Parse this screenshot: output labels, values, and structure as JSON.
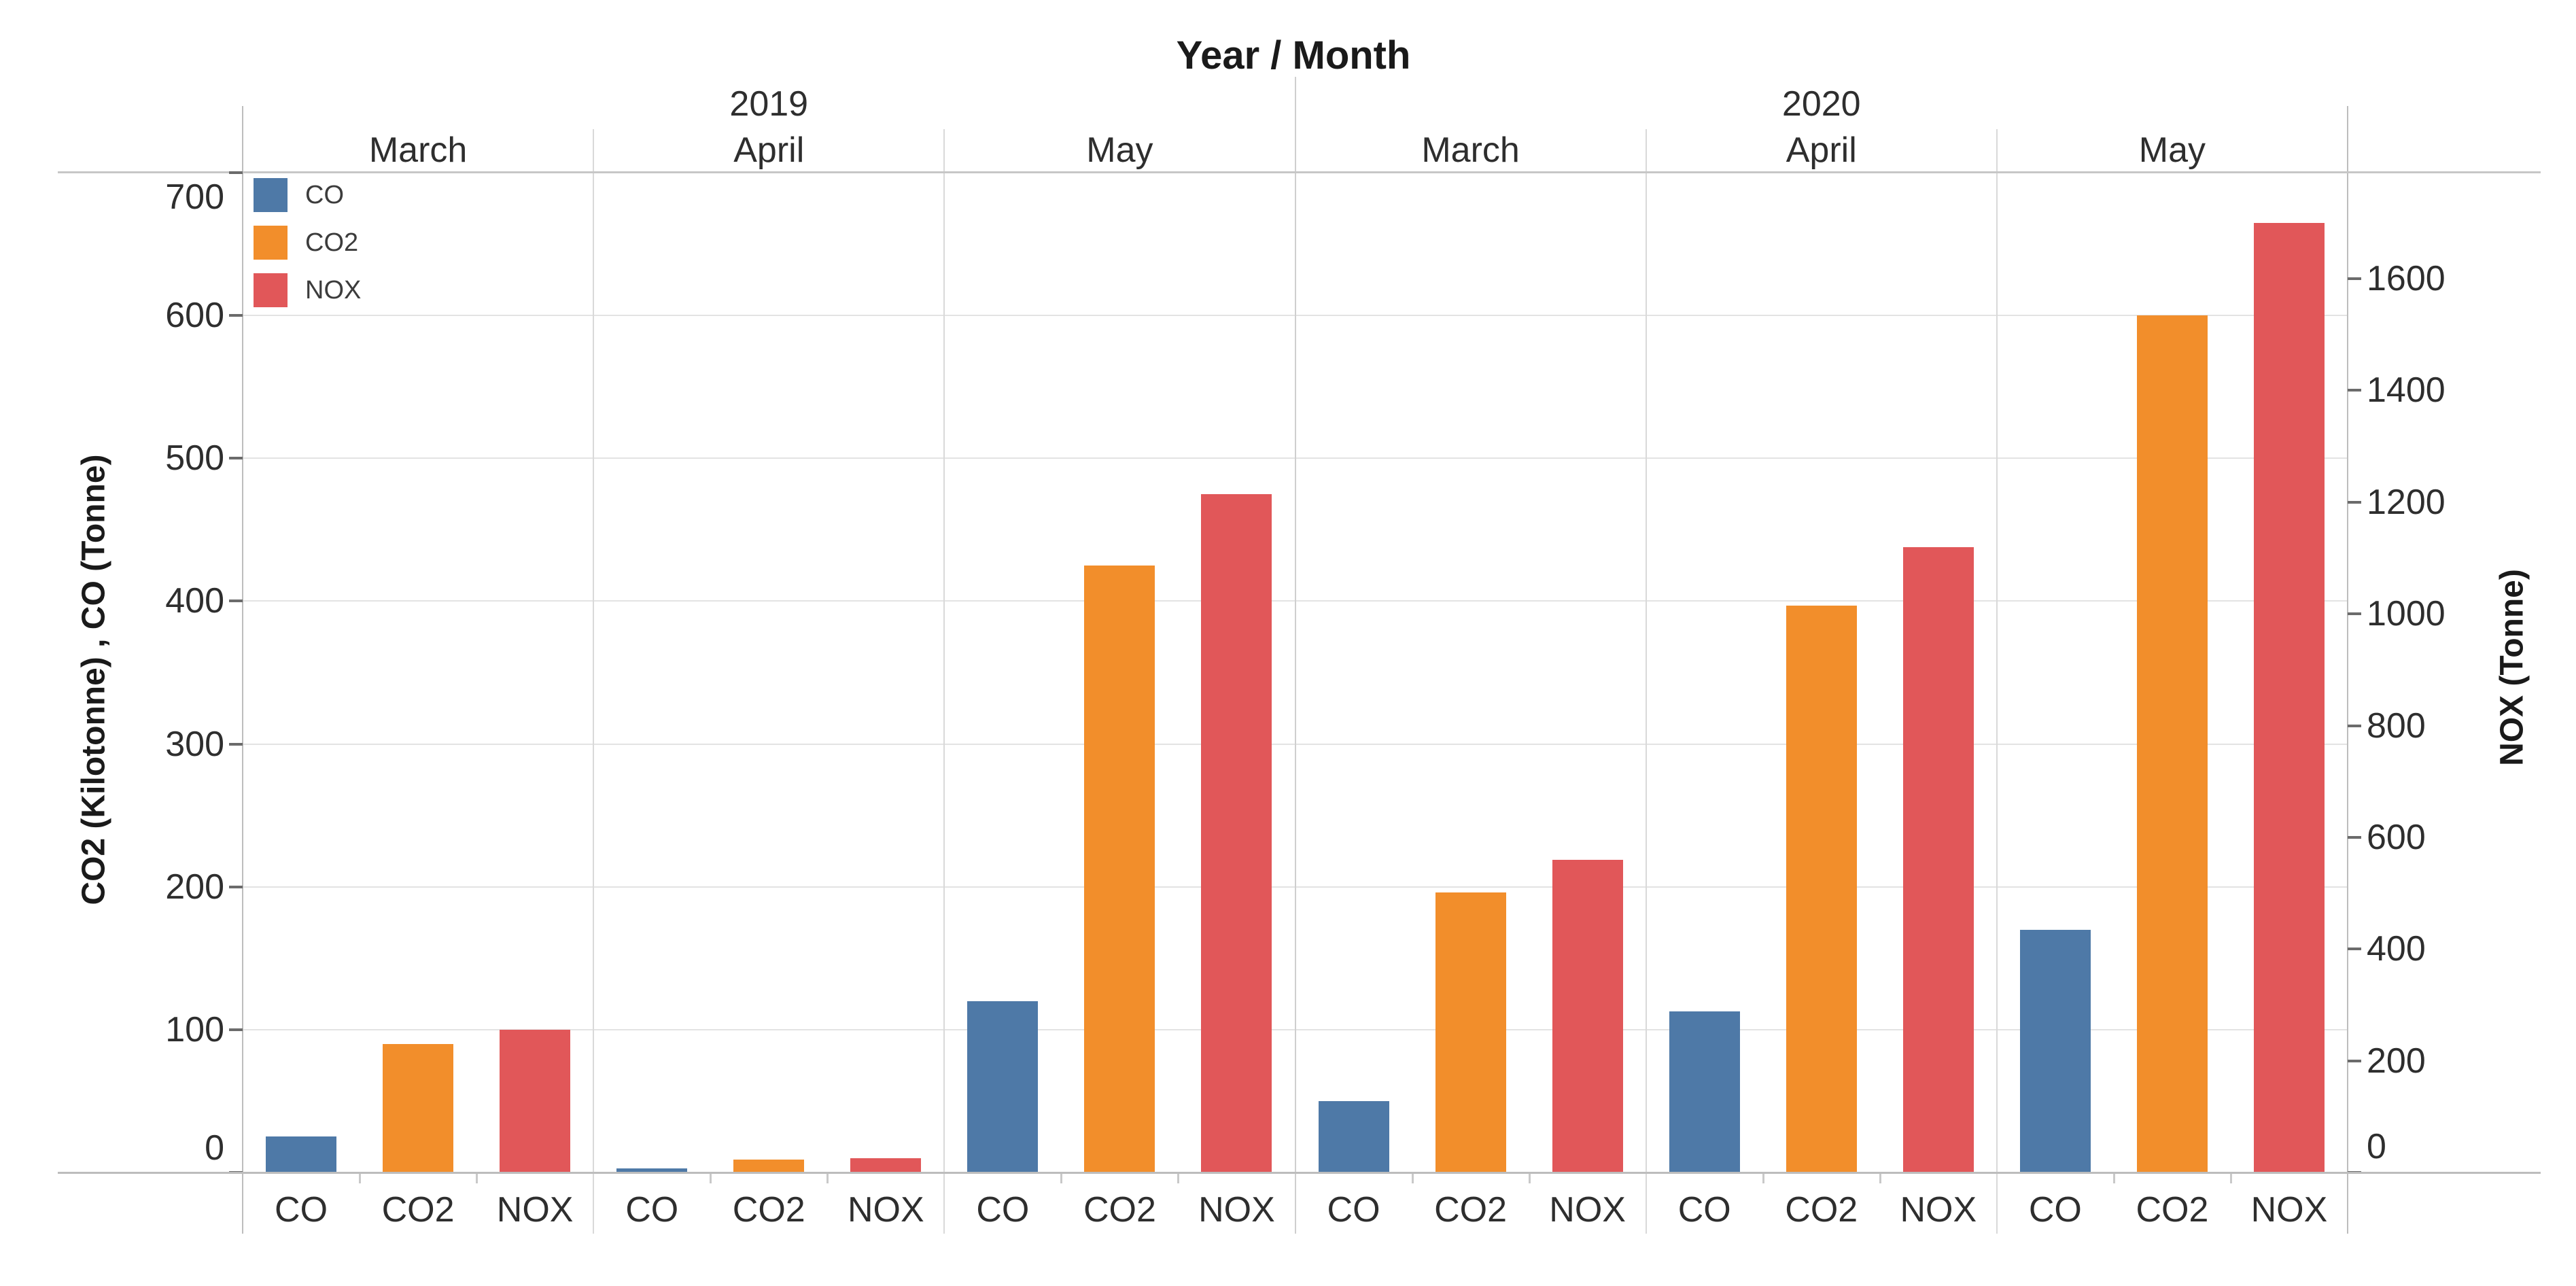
{
  "page": {
    "background": "#ffffff"
  },
  "header": {
    "title": "Year / Month"
  },
  "legend": {
    "items": [
      {
        "label": "CO",
        "color": "#4e79a7"
      },
      {
        "label": "CO2",
        "color": "#f28e2b"
      },
      {
        "label": "NOX",
        "color": "#e15759"
      }
    ]
  },
  "axes": {
    "left": {
      "title": "CO2 (Kilotonne) , CO (Tonne)",
      "ticks": [
        0,
        100,
        200,
        300,
        400,
        500,
        600,
        700
      ]
    },
    "right": {
      "title": "NOX (Tonne)",
      "ticks": [
        0,
        200,
        400,
        600,
        800,
        1000,
        1200,
        1400,
        1600
      ]
    }
  },
  "chart_data": {
    "type": "bar",
    "title": "Year / Month",
    "ylabel_left": "CO2 (Kilotonne) , CO (Tonne)",
    "ylabel_right": "NOX (Tonne)",
    "left_ylim": [
      0,
      700
    ],
    "right_ylim": [
      0,
      1790
    ],
    "left_tick_step": 100,
    "right_tick_step": 200,
    "right_tick_max": 1600,
    "grid": "horizontal-from-left-axis",
    "legend_position": "top-left-inside",
    "x_categories": [
      "CO",
      "CO2",
      "NOX"
    ],
    "series_meta": [
      {
        "name": "CO",
        "unit": "Tonne",
        "axis": "left",
        "color": "#4e79a7"
      },
      {
        "name": "CO2",
        "unit": "Kilotonne",
        "axis": "left",
        "color": "#f28e2b"
      },
      {
        "name": "NOX",
        "unit": "Tonne",
        "axis": "right",
        "color": "#e15759"
      }
    ],
    "year_groups": [
      {
        "label": "2019",
        "panels": [
          0,
          1,
          2
        ]
      },
      {
        "label": "2020",
        "panels": [
          3,
          4,
          5
        ]
      }
    ],
    "panels": [
      {
        "year": "2019",
        "month": "March",
        "values": {
          "CO": 25,
          "CO2": 90,
          "NOX": 255
        }
      },
      {
        "year": "2019",
        "month": "April",
        "values": {
          "CO": 3,
          "CO2": 9,
          "NOX": 25
        }
      },
      {
        "year": "2019",
        "month": "May",
        "values": {
          "CO": 120,
          "CO2": 425,
          "NOX": 1215
        }
      },
      {
        "year": "2020",
        "month": "March",
        "values": {
          "CO": 50,
          "CO2": 196,
          "NOX": 560
        }
      },
      {
        "year": "2020",
        "month": "April",
        "values": {
          "CO": 113,
          "CO2": 397,
          "NOX": 1120
        }
      },
      {
        "year": "2020",
        "month": "May",
        "values": {
          "CO": 170,
          "CO2": 600,
          "NOX": 1700
        }
      }
    ]
  }
}
